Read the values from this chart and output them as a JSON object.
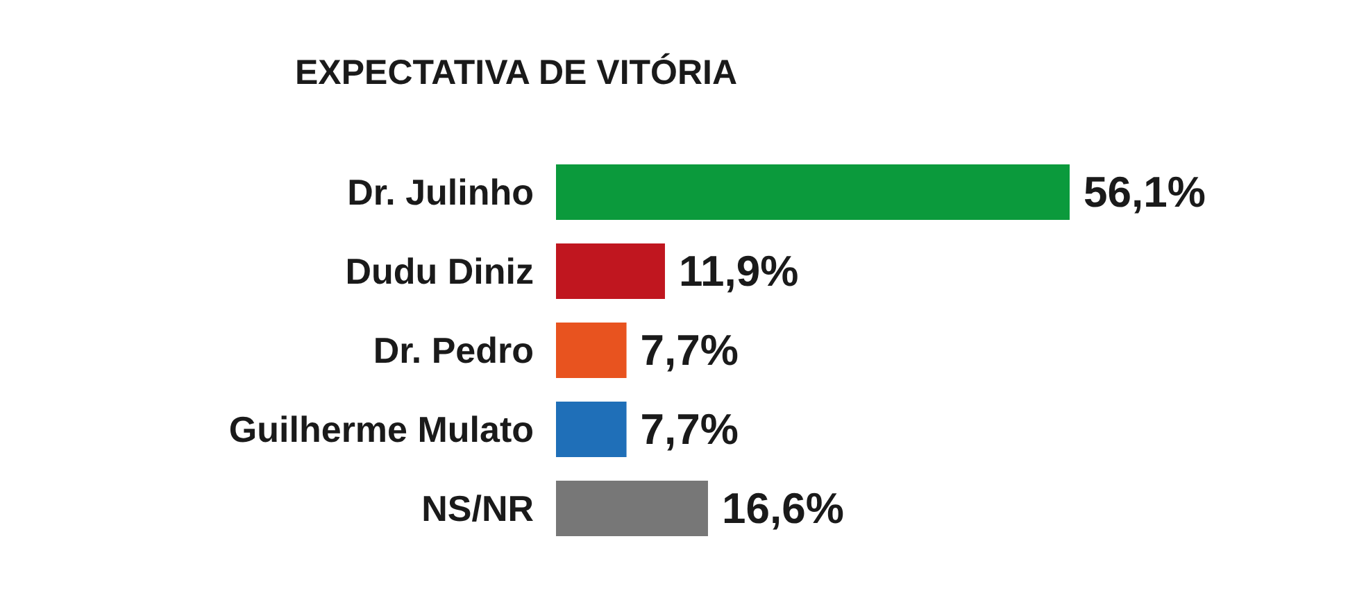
{
  "chart_data": {
    "type": "bar",
    "orientation": "horizontal",
    "title": "EXPECTATIVA DE VITÓRIA",
    "categories": [
      "Dr. Julinho",
      "Dudu Diniz",
      "Dr. Pedro",
      "Guilherme Mulato",
      "NS/NR"
    ],
    "values": [
      56.1,
      11.9,
      7.7,
      7.7,
      16.6
    ],
    "colors": [
      "#0b9a3c",
      "#c0161f",
      "#e8531f",
      "#1f6fb8",
      "#777777"
    ],
    "value_labels": [
      "56,1%",
      "11,9%",
      "7,7%",
      "7,7%",
      "16,6%"
    ]
  }
}
